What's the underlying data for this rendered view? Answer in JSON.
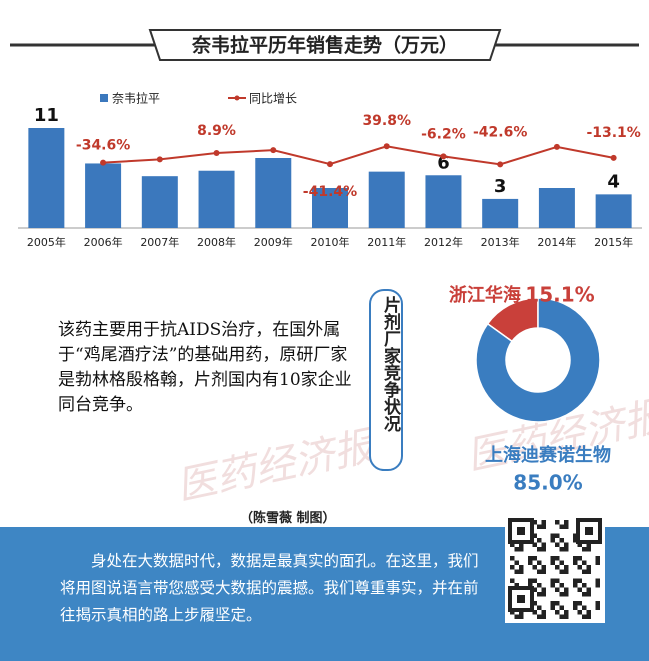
{
  "title": "奈韦拉平历年销售走势（万元）",
  "chart_data": [
    {
      "type": "bar",
      "categories": [
        "2005年",
        "2006年",
        "2007年",
        "2008年",
        "2009年",
        "2010年",
        "2011年",
        "2012年",
        "2013年",
        "2014年",
        "2015年"
      ],
      "series": [
        {
          "name": "奈韦拉平",
          "color": "#3b78bd",
          "values": [
            11,
            7.1,
            5.7,
            6.3,
            7.7,
            4.4,
            6.2,
            5.8,
            3.2,
            4.4,
            3.7
          ],
          "value_labels": [
            "11",
            null,
            null,
            null,
            null,
            null,
            null,
            "6",
            "3",
            null,
            "4"
          ]
        },
        {
          "name": "同比增长",
          "type": "line",
          "color": "#c0392b",
          "values": [
            null,
            -34.6,
            -20,
            8.9,
            22,
            -41.4,
            39.8,
            -6.2,
            -42.6,
            37,
            -13.1
          ],
          "value_labels": [
            null,
            "-34.6%",
            null,
            "8.9%",
            null,
            "-41.4%",
            "39.8%",
            "-6.2%",
            "-42.6%",
            null,
            "-13.1%"
          ]
        }
      ]
    },
    {
      "type": "pie",
      "title": "片剂厂家竞争状况",
      "categories": [
        "浙江华海",
        "上海迪赛诺生物"
      ],
      "values": [
        15.1,
        85.0
      ],
      "value_labels": [
        "15.1%",
        "85.0%"
      ],
      "colors": [
        "#c9403a",
        "#3a7dc0"
      ]
    }
  ],
  "description": "该药主要用于抗AIDS治疗，在国外属于“鸡尾酒疗法”的基础用药，原研厂家是勃林格殷格翰，片剂国内有10家企业同台竞争。",
  "watermark": "医药经济报",
  "credit": "（陈雪薇  制图）",
  "footer": "身处在大数据时代，数据是最真实的面孔。在这里，我们将用图说语言带您感受大数据的震撼。我们尊重事实，并在前往揭示真相的路上步履坚定。"
}
